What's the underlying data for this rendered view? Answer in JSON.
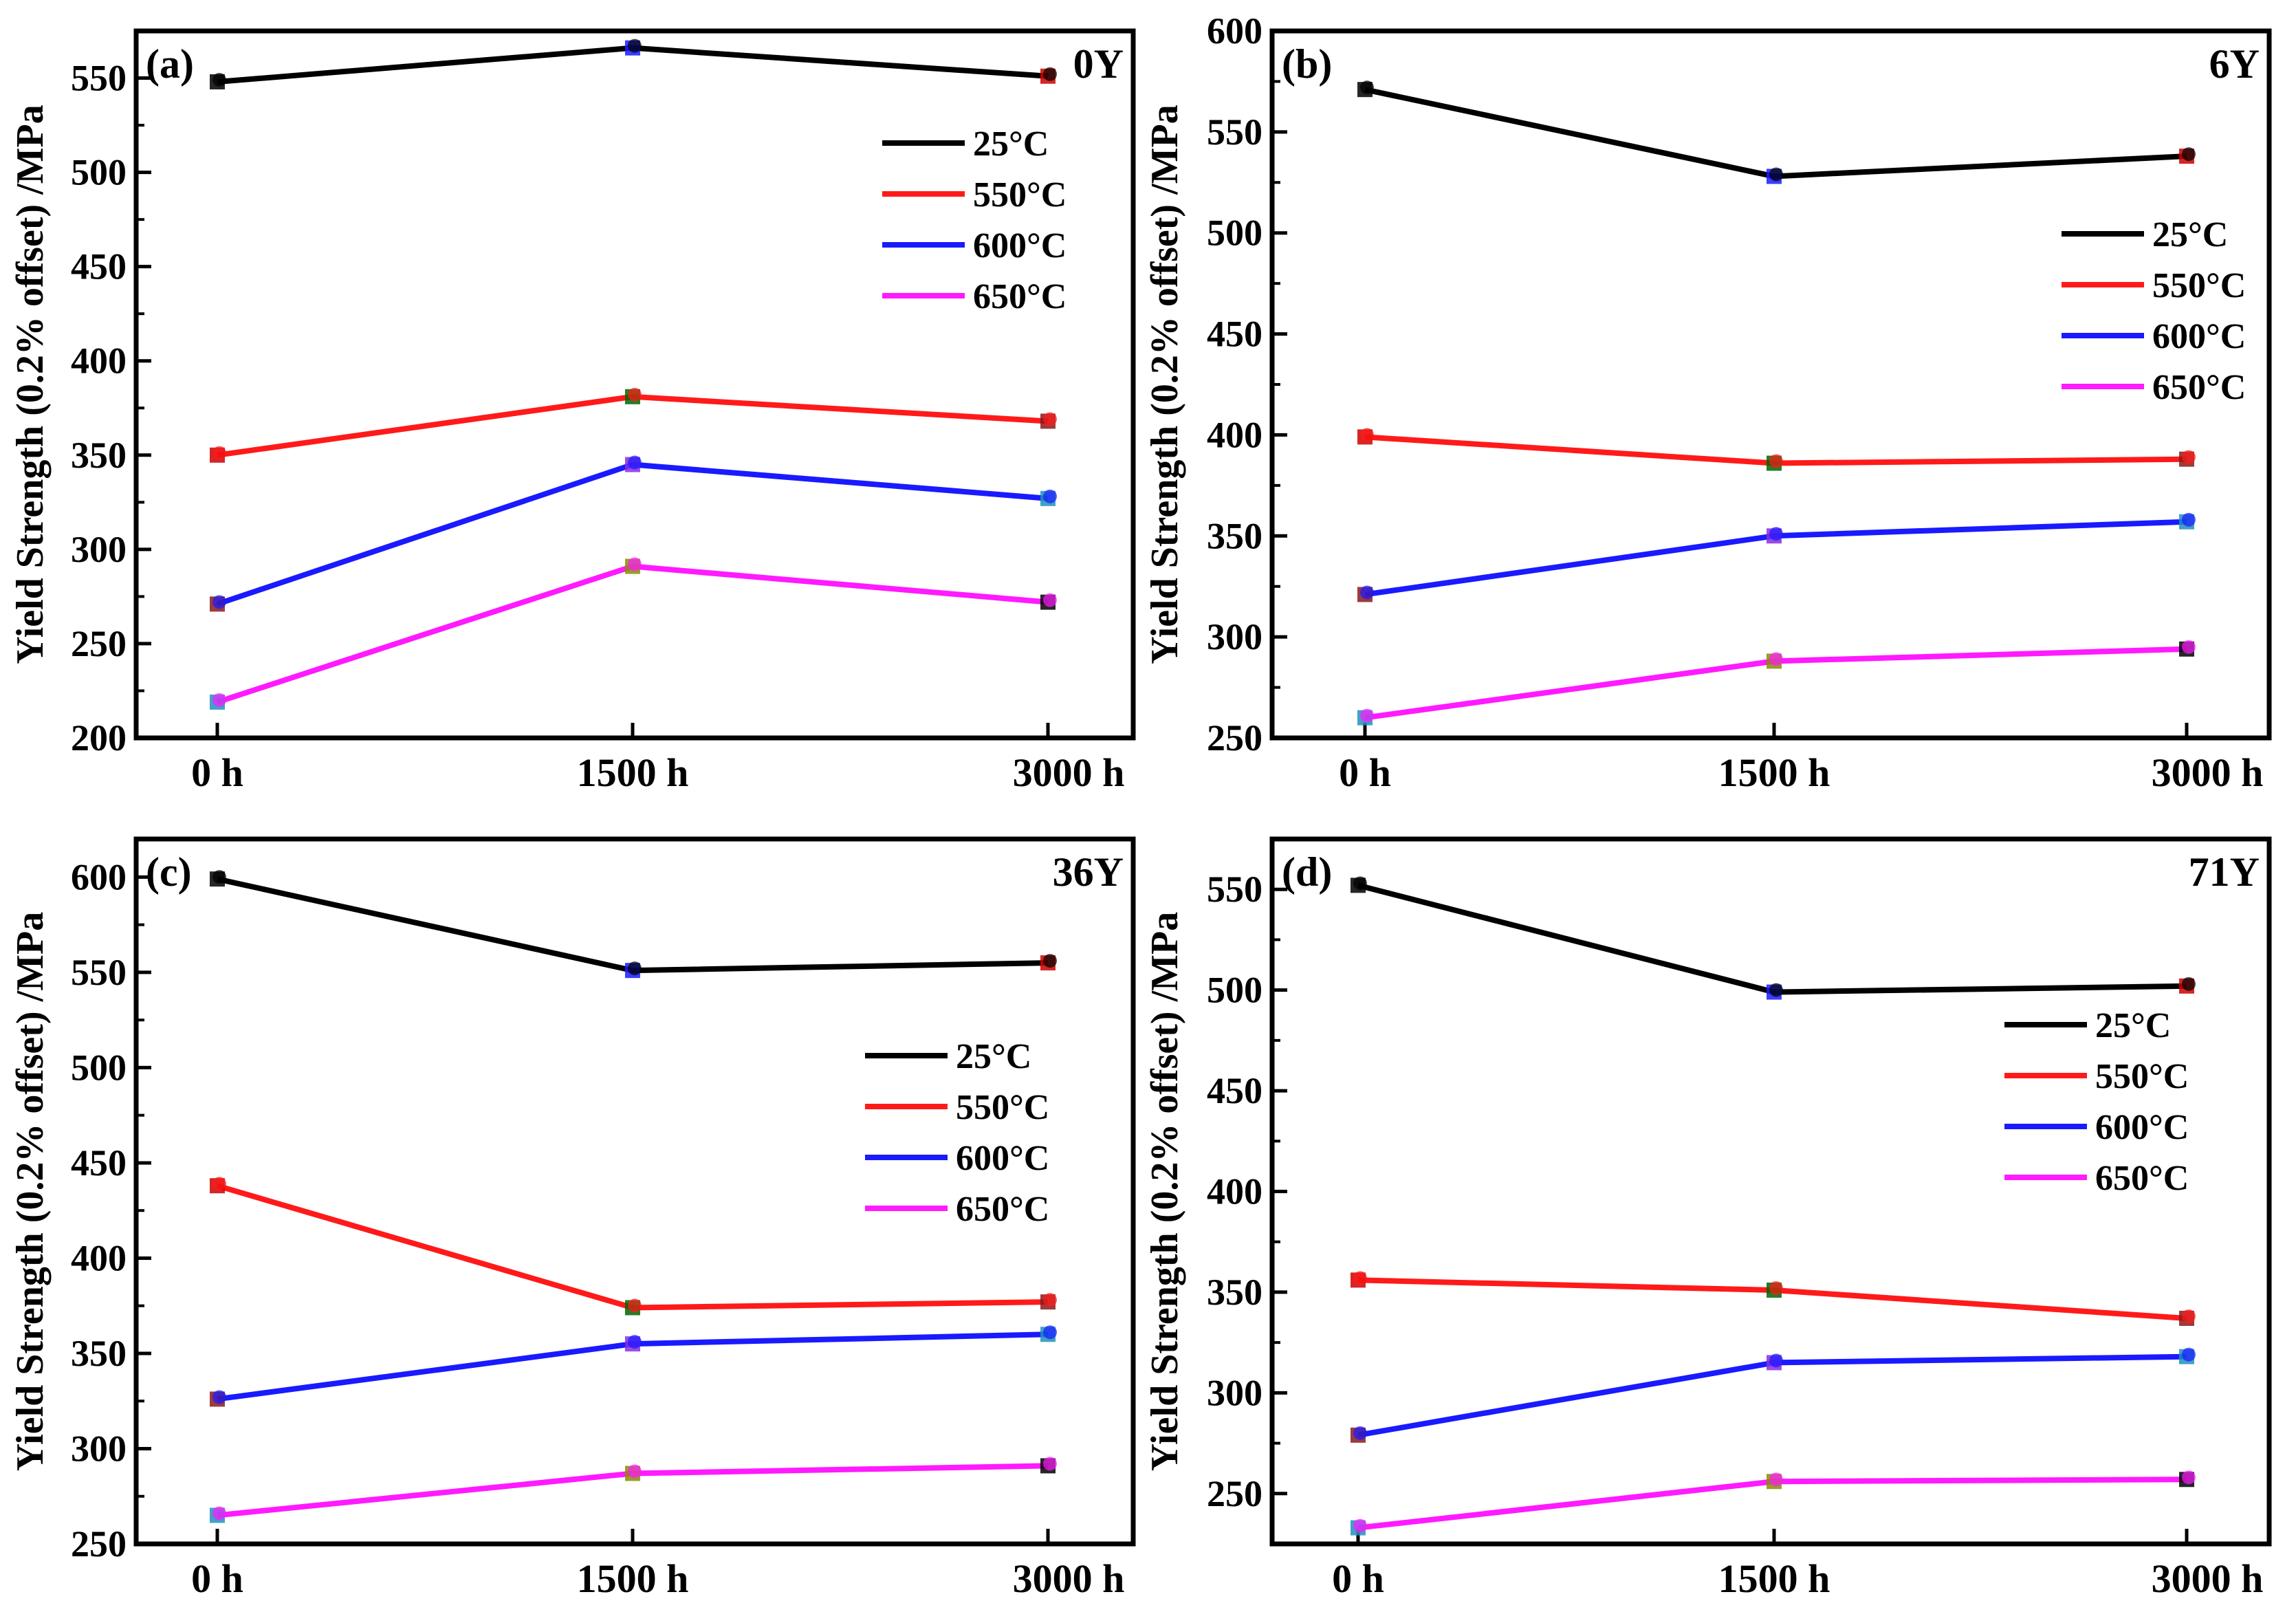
{
  "figure": {
    "x_categories": [
      "0 h",
      "1500 h",
      "3000 h"
    ],
    "legend_labels": [
      "25°C",
      "550°C",
      "600°C",
      "650°C"
    ],
    "series_colors": [
      "#000000",
      "#ff1a1a",
      "#1a1aff",
      "#ff1aff"
    ]
  },
  "chart_data": [
    {
      "panel": "(a)",
      "title": "0Y",
      "type": "line",
      "categories": [
        "0 h",
        "1500 h",
        "3000 h"
      ],
      "ylabel": "Yield Strength (0.2% offset) /MPa",
      "ylim": [
        200,
        575
      ],
      "yticks": [
        200,
        250,
        300,
        350,
        400,
        450,
        500,
        550
      ],
      "legend_position": "top-right",
      "series": [
        {
          "name": "25°C",
          "values": [
            548,
            566,
            551
          ]
        },
        {
          "name": "550°C",
          "values": [
            350,
            381,
            368
          ]
        },
        {
          "name": "600°C",
          "values": [
            271,
            345,
            327
          ]
        },
        {
          "name": "650°C",
          "values": [
            219,
            291,
            272
          ]
        }
      ]
    },
    {
      "panel": "(b)",
      "title": "6Y",
      "type": "line",
      "categories": [
        "0 h",
        "1500 h",
        "3000 h"
      ],
      "ylabel": "Yield Strength (0.2% offset) /MPa",
      "ylim": [
        250,
        600
      ],
      "yticks": [
        250,
        300,
        350,
        400,
        450,
        500,
        550,
        600
      ],
      "legend_position": "right",
      "series": [
        {
          "name": "25°C",
          "values": [
            571,
            528,
            538
          ]
        },
        {
          "name": "550°C",
          "values": [
            399,
            386,
            388
          ]
        },
        {
          "name": "600°C",
          "values": [
            321,
            350,
            357
          ]
        },
        {
          "name": "650°C",
          "values": [
            260,
            288,
            294
          ]
        }
      ]
    },
    {
      "panel": "(c)",
      "title": "36Y",
      "type": "line",
      "categories": [
        "0 h",
        "1500 h",
        "3000 h"
      ],
      "ylabel": "Yield Strength (0.2% offset) /MPa",
      "ylim": [
        250,
        620
      ],
      "yticks": [
        250,
        300,
        350,
        400,
        450,
        500,
        550,
        600
      ],
      "legend_position": "right",
      "series": [
        {
          "name": "25°C",
          "values": [
            599,
            551,
            555
          ]
        },
        {
          "name": "550°C",
          "values": [
            438,
            374,
            377
          ]
        },
        {
          "name": "600°C",
          "values": [
            326,
            355,
            360
          ]
        },
        {
          "name": "650°C",
          "values": [
            265,
            287,
            291
          ]
        }
      ]
    },
    {
      "panel": "(d)",
      "title": "71Y",
      "type": "line",
      "categories": [
        "0 h",
        "1500 h",
        "3000 h"
      ],
      "ylabel": "Yield Strength (0.2% offset) /MPa",
      "ylim": [
        225,
        575
      ],
      "yticks": [
        250,
        300,
        350,
        400,
        450,
        500,
        550
      ],
      "legend_position": "right",
      "series": [
        {
          "name": "25°C",
          "values": [
            552,
            499,
            502
          ]
        },
        {
          "name": "550°C",
          "values": [
            356,
            351,
            337
          ]
        },
        {
          "name": "600°C",
          "values": [
            279,
            315,
            318
          ]
        },
        {
          "name": "650°C",
          "values": [
            233,
            256,
            257
          ]
        }
      ]
    }
  ]
}
